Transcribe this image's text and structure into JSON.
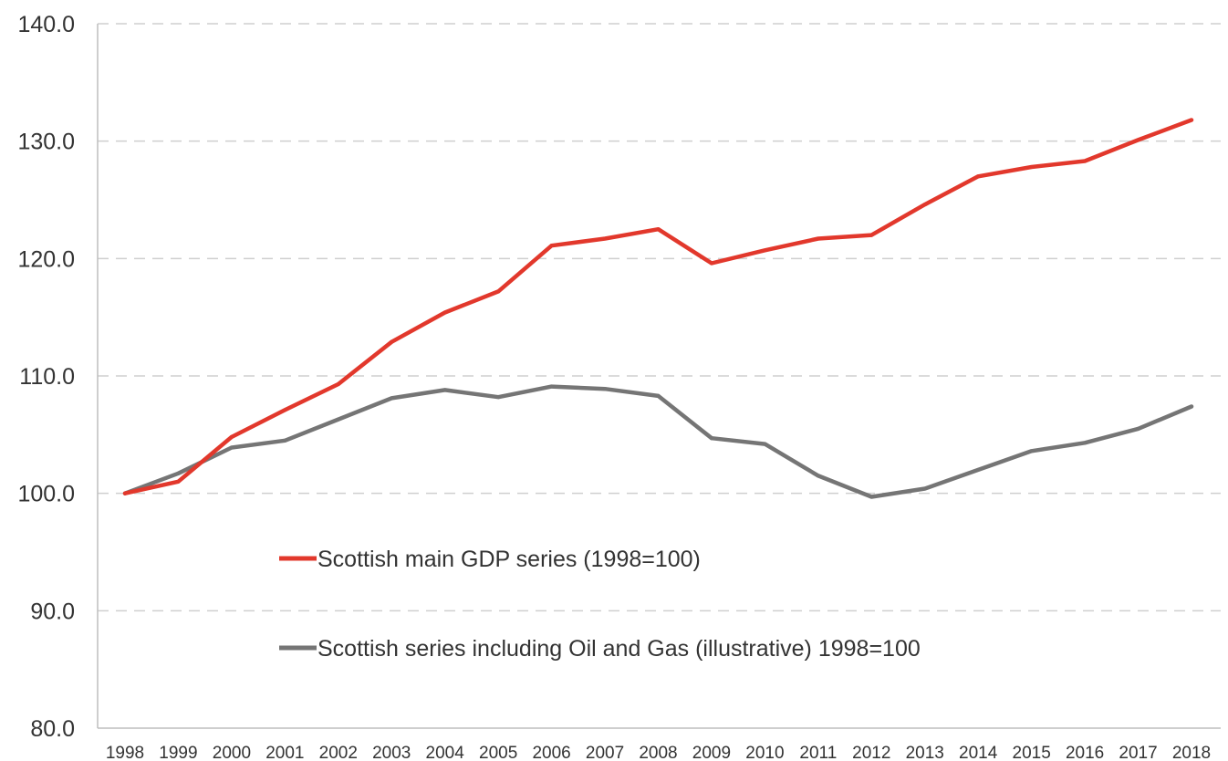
{
  "chart_data": {
    "type": "line",
    "title": "",
    "xlabel": "",
    "ylabel": "",
    "ylim": [
      80,
      140
    ],
    "yticks": [
      "80.0",
      "90.0",
      "100.0",
      "110.0",
      "120.0",
      "130.0",
      "140.0"
    ],
    "ytick_values": [
      80,
      90,
      100,
      110,
      120,
      130,
      140
    ],
    "grid": true,
    "legend_position": "lower-center",
    "categories": [
      "1998",
      "1999",
      "2000",
      "2001",
      "2002",
      "2003",
      "2004",
      "2005",
      "2006",
      "2007",
      "2008",
      "2009",
      "2010",
      "2011",
      "2012",
      "2013",
      "2014",
      "2015",
      "2016",
      "2017",
      "2018"
    ],
    "series": [
      {
        "name": "Scottish main GDP series (1998=100)",
        "color": "#e2382c",
        "values": [
          100.0,
          101.0,
          104.8,
          107.1,
          109.3,
          112.9,
          115.4,
          117.2,
          121.1,
          121.7,
          122.5,
          119.6,
          120.7,
          121.7,
          122.0,
          124.6,
          127.0,
          127.8,
          128.3,
          130.1,
          131.8
        ]
      },
      {
        "name": "Scottish series including Oil and Gas (illustrative) 1998=100",
        "color": "#757575",
        "values": [
          100.0,
          101.7,
          103.9,
          104.5,
          106.3,
          108.1,
          108.8,
          108.2,
          109.1,
          108.9,
          108.3,
          104.7,
          104.2,
          101.5,
          99.7,
          100.4,
          102.0,
          103.6,
          104.3,
          105.5,
          107.4
        ]
      }
    ]
  }
}
